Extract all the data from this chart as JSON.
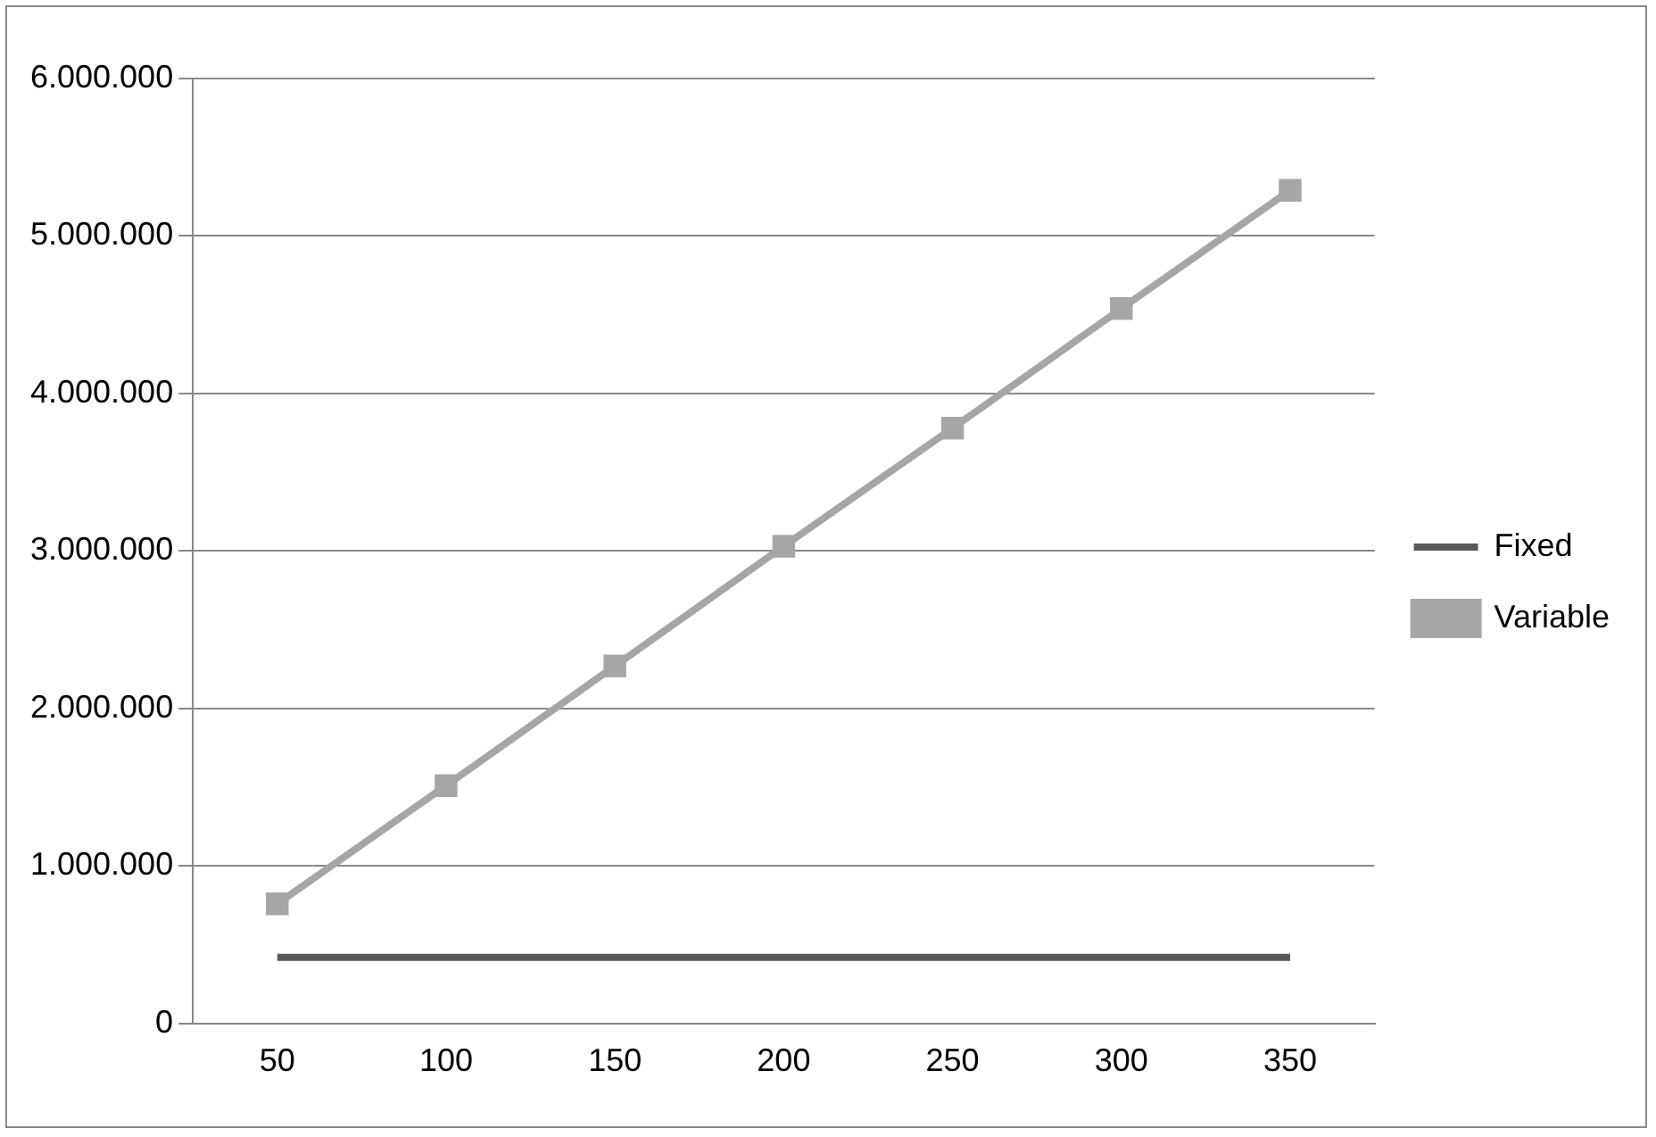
{
  "chart_data": {
    "type": "line",
    "categories": [
      "50",
      "100",
      "150",
      "200",
      "250",
      "300",
      "350"
    ],
    "series": [
      {
        "name": "Fixed",
        "color": "#595959",
        "marker": "none",
        "values": [
          420000,
          420000,
          420000,
          420000,
          420000,
          420000,
          420000
        ]
      },
      {
        "name": "Variable",
        "color": "#a6a6a6",
        "marker": "square",
        "values": [
          760000,
          1510000,
          2270000,
          3030000,
          3780000,
          4540000,
          5290000
        ]
      }
    ],
    "ylim": [
      0,
      6000000
    ],
    "yticks": [
      0,
      {
        "value": 1000000,
        "label": "1.000.000"
      },
      {
        "value": 2000000,
        "label": "2.000.000"
      },
      {
        "value": 3000000,
        "label": "3.000.000"
      },
      {
        "value": 4000000,
        "label": "4.000.000"
      },
      {
        "value": 5000000,
        "label": "5.000.000"
      },
      {
        "value": 6000000,
        "label": "6.000.000"
      }
    ],
    "grid": "y",
    "legend": "right",
    "line_style": "solid"
  }
}
